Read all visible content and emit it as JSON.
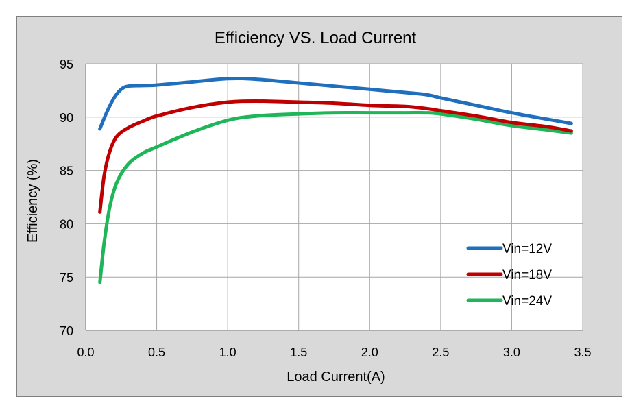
{
  "chart_data": {
    "type": "line",
    "title": "Efficiency VS. Load  Current",
    "xlabel": "Load  Current(A)",
    "ylabel": "Efficiency (%)",
    "xlim": [
      0.0,
      3.5
    ],
    "ylim": [
      70,
      95
    ],
    "x_ticks": [
      "0.0",
      "0.5",
      "1.0",
      "1.5",
      "2.0",
      "2.5",
      "3.0",
      "3.5"
    ],
    "y_ticks": [
      "70",
      "75",
      "80",
      "85",
      "90",
      "95"
    ],
    "grid": true,
    "legend_position": "bottom-right",
    "series": [
      {
        "name": "Vin=12V",
        "color": "#1f6fbd",
        "points": [
          [
            0.1,
            88.9
          ],
          [
            0.15,
            90.5
          ],
          [
            0.2,
            91.8
          ],
          [
            0.25,
            92.6
          ],
          [
            0.3,
            92.9
          ],
          [
            0.4,
            92.95
          ],
          [
            0.5,
            93.0
          ],
          [
            0.75,
            93.3
          ],
          [
            1.0,
            93.6
          ],
          [
            1.2,
            93.55
          ],
          [
            1.5,
            93.2
          ],
          [
            1.75,
            92.9
          ],
          [
            2.0,
            92.6
          ],
          [
            2.25,
            92.3
          ],
          [
            2.4,
            92.1
          ],
          [
            2.5,
            91.8
          ],
          [
            2.75,
            91.1
          ],
          [
            3.0,
            90.4
          ],
          [
            3.25,
            89.8
          ],
          [
            3.42,
            89.4
          ]
        ]
      },
      {
        "name": "Vin=18V",
        "color": "#c00000",
        "points": [
          [
            0.1,
            81.1
          ],
          [
            0.13,
            84.5
          ],
          [
            0.17,
            86.8
          ],
          [
            0.22,
            88.2
          ],
          [
            0.3,
            89.0
          ],
          [
            0.4,
            89.6
          ],
          [
            0.5,
            90.1
          ],
          [
            0.75,
            90.9
          ],
          [
            1.0,
            91.4
          ],
          [
            1.2,
            91.5
          ],
          [
            1.5,
            91.4
          ],
          [
            1.75,
            91.3
          ],
          [
            2.0,
            91.1
          ],
          [
            2.25,
            91.0
          ],
          [
            2.4,
            90.8
          ],
          [
            2.5,
            90.6
          ],
          [
            2.75,
            90.1
          ],
          [
            3.0,
            89.5
          ],
          [
            3.25,
            89.1
          ],
          [
            3.42,
            88.7
          ]
        ]
      },
      {
        "name": "Vin=24V",
        "color": "#1fb65a",
        "points": [
          [
            0.1,
            74.5
          ],
          [
            0.13,
            78.2
          ],
          [
            0.17,
            81.6
          ],
          [
            0.22,
            83.9
          ],
          [
            0.3,
            85.6
          ],
          [
            0.4,
            86.6
          ],
          [
            0.5,
            87.2
          ],
          [
            0.75,
            88.6
          ],
          [
            1.0,
            89.7
          ],
          [
            1.2,
            90.1
          ],
          [
            1.5,
            90.3
          ],
          [
            1.75,
            90.4
          ],
          [
            2.0,
            90.4
          ],
          [
            2.25,
            90.4
          ],
          [
            2.4,
            90.4
          ],
          [
            2.5,
            90.3
          ],
          [
            2.75,
            89.8
          ],
          [
            3.0,
            89.2
          ],
          [
            3.25,
            88.8
          ],
          [
            3.42,
            88.5
          ]
        ]
      }
    ]
  }
}
